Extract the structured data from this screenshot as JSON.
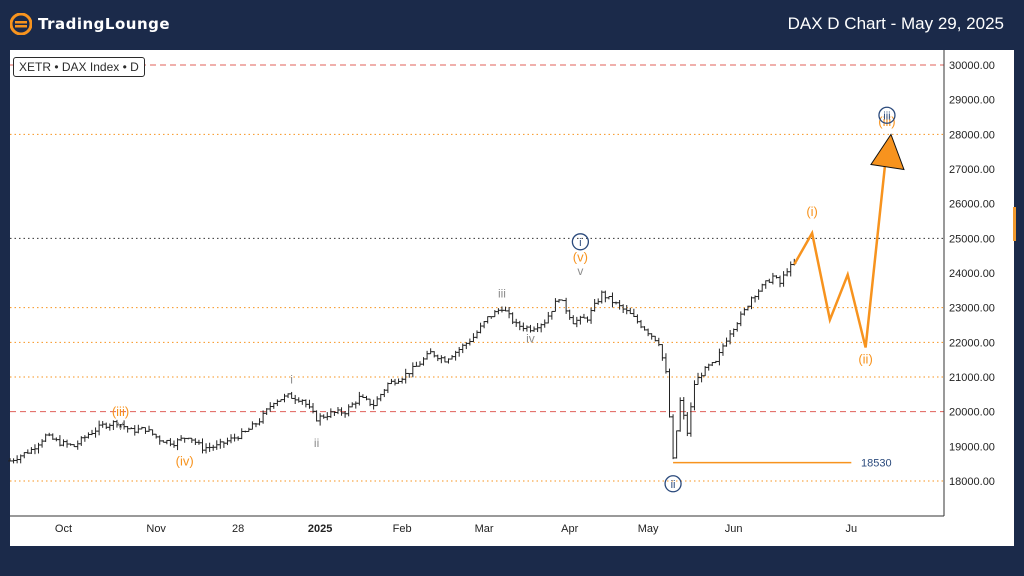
{
  "header": {
    "brand": "TradingLounge",
    "chart_title": "DAX D Chart - May 29, 2025"
  },
  "chart_data": {
    "type": "candlestick",
    "symbol_label": "XETR • DAX Index • D",
    "x_ticks": [
      "Oct",
      "Nov",
      "28",
      "2025",
      "Feb",
      "Mar",
      "Apr",
      "May",
      "Jun",
      "Ju"
    ],
    "y_ticks": [
      "30000.00",
      "29000.00",
      "28000.00",
      "27000.00",
      "26000.00",
      "25000.00",
      "24000.00",
      "23000.00",
      "22000.00",
      "21000.00",
      "20000.00",
      "19000.00",
      "18000.00"
    ],
    "ylim": [
      17000,
      30300
    ],
    "price_path": [
      [
        0,
        18580
      ],
      [
        6,
        18900
      ],
      [
        10,
        19300
      ],
      [
        14,
        19100
      ],
      [
        18,
        19000
      ],
      [
        22,
        19350
      ],
      [
        26,
        19600
      ],
      [
        30,
        19700
      ],
      [
        34,
        19450
      ],
      [
        38,
        19500
      ],
      [
        42,
        19200
      ],
      [
        46,
        19100
      ],
      [
        50,
        19300
      ],
      [
        54,
        18950
      ],
      [
        58,
        19000
      ],
      [
        62,
        19200
      ],
      [
        66,
        19400
      ],
      [
        70,
        19750
      ],
      [
        74,
        20300
      ],
      [
        78,
        20450
      ],
      [
        82,
        20350
      ],
      [
        86,
        19800
      ],
      [
        90,
        19950
      ],
      [
        94,
        20000
      ],
      [
        98,
        20400
      ],
      [
        102,
        20200
      ],
      [
        106,
        20800
      ],
      [
        110,
        21000
      ],
      [
        114,
        21300
      ],
      [
        118,
        21700
      ],
      [
        122,
        21500
      ],
      [
        126,
        21800
      ],
      [
        130,
        22150
      ],
      [
        134,
        22700
      ],
      [
        138,
        23000
      ],
      [
        142,
        22500
      ],
      [
        146,
        22400
      ],
      [
        150,
        22600
      ],
      [
        154,
        23300
      ],
      [
        158,
        22600
      ],
      [
        162,
        22700
      ],
      [
        166,
        23400
      ],
      [
        170,
        23100
      ],
      [
        174,
        22800
      ],
      [
        178,
        22400
      ],
      [
        182,
        22000
      ],
      [
        184,
        21100
      ],
      [
        186,
        18600
      ],
      [
        188,
        20300
      ],
      [
        190,
        19400
      ],
      [
        192,
        20800
      ],
      [
        194,
        21100
      ],
      [
        196,
        21300
      ],
      [
        198,
        21400
      ],
      [
        200,
        21900
      ],
      [
        202,
        22300
      ],
      [
        204,
        22600
      ],
      [
        206,
        22900
      ],
      [
        208,
        23300
      ],
      [
        210,
        23500
      ],
      [
        212,
        23700
      ],
      [
        214,
        23900
      ],
      [
        216,
        23700
      ],
      [
        218,
        24100
      ],
      [
        220,
        24250
      ]
    ],
    "projection": {
      "series_name": "Projected wave path",
      "color": "#f7931e",
      "points": [
        [
          220,
          24250
        ],
        [
          225,
          25150
        ],
        [
          230,
          22650
        ],
        [
          235,
          23950
        ],
        [
          240,
          21850
        ],
        [
          246,
          27650
        ]
      ]
    },
    "horizontal_levels": [
      {
        "value": 30000,
        "style": "dashed",
        "color": "#e0605a"
      },
      {
        "value": 28000,
        "style": "dotted",
        "color": "#f7931e"
      },
      {
        "value": 25000,
        "style": "dotted",
        "color": "#333333"
      },
      {
        "value": 23000,
        "style": "dotted",
        "color": "#f7931e"
      },
      {
        "value": 22000,
        "style": "dotted",
        "color": "#f7931e"
      },
      {
        "value": 21000,
        "style": "dotted",
        "color": "#f7931e"
      },
      {
        "value": 20000,
        "style": "dashed",
        "color": "#e0605a"
      },
      {
        "value": 18000,
        "style": "dotted",
        "color": "#f7931e"
      }
    ],
    "support_line": {
      "value": 18530,
      "label": "18530",
      "x_start": 186,
      "color": "#f7931e"
    },
    "wave_labels": [
      {
        "text": "(iii)",
        "x": 31,
        "value": 19870,
        "color": "#f7931e",
        "size": 13
      },
      {
        "text": "v",
        "x": 31,
        "value": 19500,
        "color": "#8c8c8c",
        "size": 12
      },
      {
        "text": "(iv)",
        "x": 49,
        "value": 18450,
        "color": "#f7931e",
        "size": 13
      },
      {
        "text": "i",
        "x": 79,
        "value": 20810,
        "color": "#8c8c8c",
        "size": 12
      },
      {
        "text": "ii",
        "x": 86,
        "value": 18980,
        "color": "#8c8c8c",
        "size": 12
      },
      {
        "text": "iii",
        "x": 138,
        "value": 23300,
        "color": "#8c8c8c",
        "size": 12
      },
      {
        "text": "iv",
        "x": 146,
        "value": 21990,
        "color": "#8c8c8c",
        "size": 12
      },
      {
        "text": "v",
        "x": 160,
        "value": 23940,
        "color": "#8c8c8c",
        "size": 12
      },
      {
        "text": "(v)",
        "x": 160,
        "value": 24330,
        "color": "#f7931e",
        "size": 13
      },
      {
        "text": "(i)",
        "x": 225,
        "value": 25650,
        "color": "#f7931e",
        "size": 13
      },
      {
        "text": "(ii)",
        "x": 240,
        "value": 21390,
        "color": "#f7931e",
        "size": 13
      },
      {
        "text": "(iii)",
        "x": 246,
        "value": 28240,
        "color": "#f7931e",
        "size": 13
      }
    ],
    "circle_labels": [
      {
        "text": "i",
        "x": 160,
        "value": 24900,
        "color": "#2b4a7c"
      },
      {
        "text": "ii",
        "x": 186,
        "value": 17920,
        "color": "#2b4a7c"
      },
      {
        "text": "iii",
        "x": 246,
        "value": 28550,
        "color": "#2b4a7c"
      }
    ]
  }
}
